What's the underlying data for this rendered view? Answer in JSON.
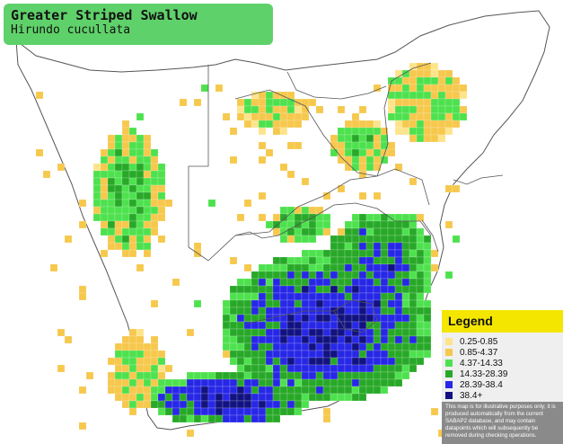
{
  "title": {
    "common_name": "Greater Striped Swallow",
    "scientific_name": "Hirundo cucullata"
  },
  "legend": {
    "heading": "Legend",
    "entries": [
      {
        "label": "0.25-0.85",
        "color": "#fde48a"
      },
      {
        "label": "0.85-4.37",
        "color": "#f6c84c"
      },
      {
        "label": "4.37-14.33",
        "color": "#4ee14e"
      },
      {
        "label": "14.33-28.39",
        "color": "#28a828"
      },
      {
        "label": "28.39-38.4",
        "color": "#2727e6"
      },
      {
        "label": "38.4+",
        "color": "#121281"
      }
    ],
    "disclaimer": "This map is for illustrative purposes only; it is produced automatically from the current SABAP2 database, and may contain datapoints which will subsequently be removed during checking operations."
  },
  "map_colors": {
    "ocean": "#ffffff",
    "border": "#444444",
    "title_box": "#5fd16a",
    "legend_header": "#f5e600"
  }
}
